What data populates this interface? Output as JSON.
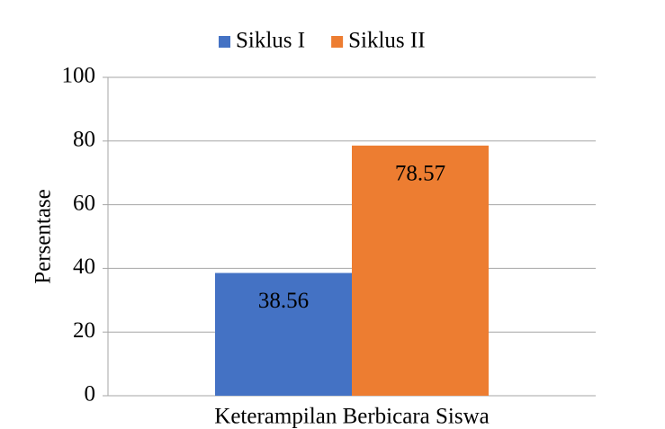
{
  "chart_data": {
    "type": "bar",
    "y_label": "Persentase",
    "categories": [
      "Keterampilan Berbicara Siswa"
    ],
    "series": [
      {
        "name": "Siklus I",
        "color": "#4472c4",
        "values": [
          38.56
        ]
      },
      {
        "name": "Siklus II",
        "color": "#ed7d31",
        "values": [
          78.57
        ]
      }
    ],
    "ylim": [
      0,
      100
    ],
    "yticks": [
      0,
      20,
      40,
      60,
      80,
      100
    ],
    "grid": true,
    "legend": "top"
  }
}
